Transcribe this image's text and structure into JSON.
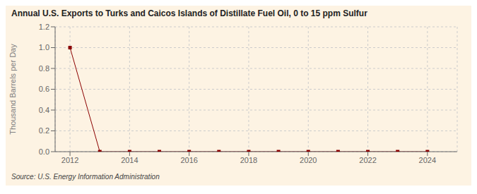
{
  "chart_data": {
    "type": "line",
    "title": "Annual U.S. Exports to Turks and Caicos Islands of Distillate Fuel Oil, 0 to 15 ppm Sulfur",
    "y_label": "Thousand Barrels per Day",
    "annotations": [
      "Source: U.S. Energy Information Administration"
    ],
    "x": [
      2012,
      2013,
      2014,
      2015,
      2016,
      2017,
      2018,
      2019,
      2020,
      2021,
      2022,
      2023,
      2024
    ],
    "values": [
      1.0,
      0.0,
      0.0,
      0.0,
      0.0,
      0.0,
      0.0,
      0.0,
      0.0,
      0.0,
      0.0,
      0.0,
      0.0
    ],
    "color": "#8B0000",
    "marker": "square",
    "xlim": [
      2011.5,
      2025.0
    ],
    "xticks": [
      2012,
      2014,
      2016,
      2018,
      2020,
      2022,
      2024
    ],
    "ylim": [
      0.0,
      1.2
    ],
    "yticks": [
      {
        "value": 0.0,
        "label": "0.0"
      },
      {
        "value": 0.2,
        "label": "0.2"
      },
      {
        "value": 0.4,
        "label": "0.4"
      },
      {
        "value": 0.6,
        "label": "0.6"
      },
      {
        "value": 0.8,
        "label": "0.8"
      },
      {
        "value": 1.0,
        "label": "1.0"
      },
      {
        "value": 1.2,
        "label": "1.2"
      }
    ],
    "grid": true
  }
}
